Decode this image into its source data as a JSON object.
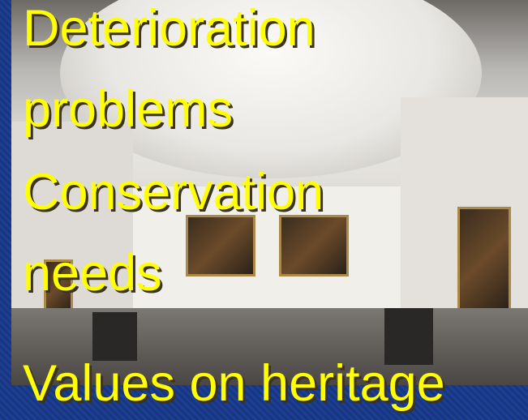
{
  "lines": [
    "Deterioration",
    "problems",
    "Conservation",
    "needs",
    "Values on heritage"
  ]
}
